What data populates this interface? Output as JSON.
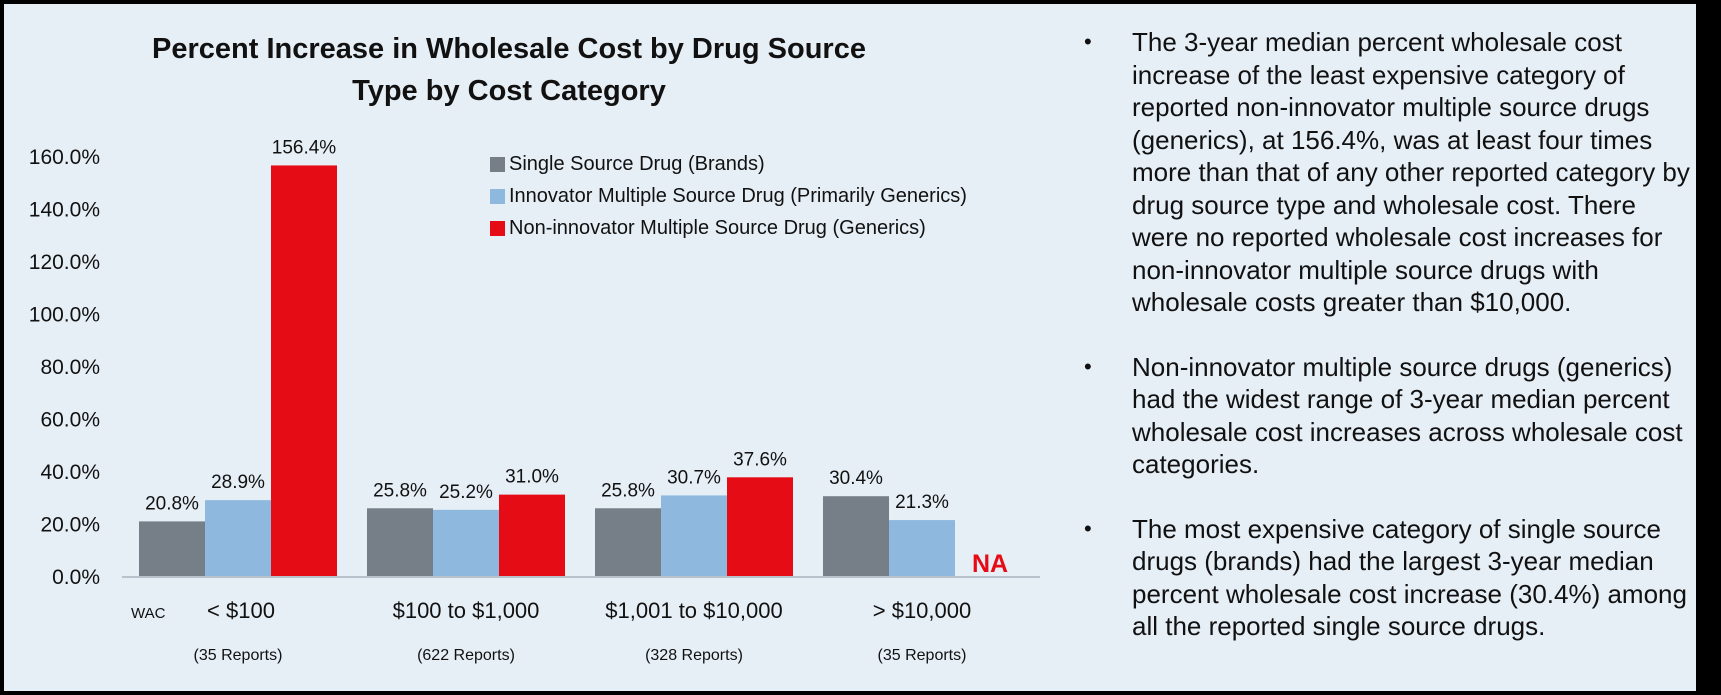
{
  "chart_data": {
    "type": "bar",
    "title": "Percent Increase in Wholesale Cost by Drug Source Type by Cost Category",
    "title_lines": [
      "Percent Increase in Wholesale Cost by Drug Source",
      "Type by Cost Category"
    ],
    "xlabel": "WAC",
    "ylabel": "",
    "ylim": [
      0,
      160
    ],
    "yticks": [
      0,
      20,
      40,
      60,
      80,
      100,
      120,
      140,
      160
    ],
    "ytick_labels": [
      "0.0%",
      "20.0%",
      "40.0%",
      "60.0%",
      "80.0%",
      "100.0%",
      "120.0%",
      "140.0%",
      "160.0%"
    ],
    "grid": false,
    "legend_position": "top-right",
    "categories": [
      "< $100",
      "$100 to $1,000",
      "$1,001 to $10,000",
      "> $10,000"
    ],
    "category_sublabels": [
      "(35 Reports)",
      "(622 Reports)",
      "(328 Reports)",
      "(35 Reports)"
    ],
    "series": [
      {
        "name": "Single Source Drug (Brands)",
        "color": "#767f88",
        "values": [
          20.8,
          25.8,
          25.8,
          30.4
        ],
        "labels": [
          "20.8%",
          "25.8%",
          "25.8%",
          "30.4%"
        ]
      },
      {
        "name": "Innovator Multiple Source Drug (Primarily Generics)",
        "color": "#8fb8df",
        "values": [
          28.9,
          25.2,
          30.7,
          21.3
        ],
        "labels": [
          "28.9%",
          "25.2%",
          "30.7%",
          "21.3%"
        ]
      },
      {
        "name": "Non-innovator Multiple Source Drug (Generics)",
        "color": "#e60c16",
        "values": [
          156.4,
          31.0,
          37.6,
          null
        ],
        "labels": [
          "156.4%",
          "31.0%",
          "37.6%",
          "NA"
        ]
      }
    ],
    "annotations": [
      {
        "text": "NA",
        "category": "> $10,000",
        "series": "Non-innovator Multiple Source Drug (Generics)",
        "color": "#e60c16"
      }
    ]
  },
  "bullets": [
    "The 3-year median percent wholesale cost increase of the least expensive category of reported non-innovator multiple source drugs (generics), at 156.4%, was at least four times more than that of any other reported category by drug source type and wholesale cost. There were no reported wholesale cost increases for non-innovator multiple source drugs with wholesale costs greater than $10,000.",
    "Non-innovator multiple source drugs (generics) had the widest range of 3-year median percent wholesale cost increases across wholesale cost categories.",
    "The most expensive category of single source drugs (brands) had the largest 3-year median percent wholesale cost increase (30.4%) among all the reported single source drugs."
  ],
  "bullet_symbol": "•"
}
